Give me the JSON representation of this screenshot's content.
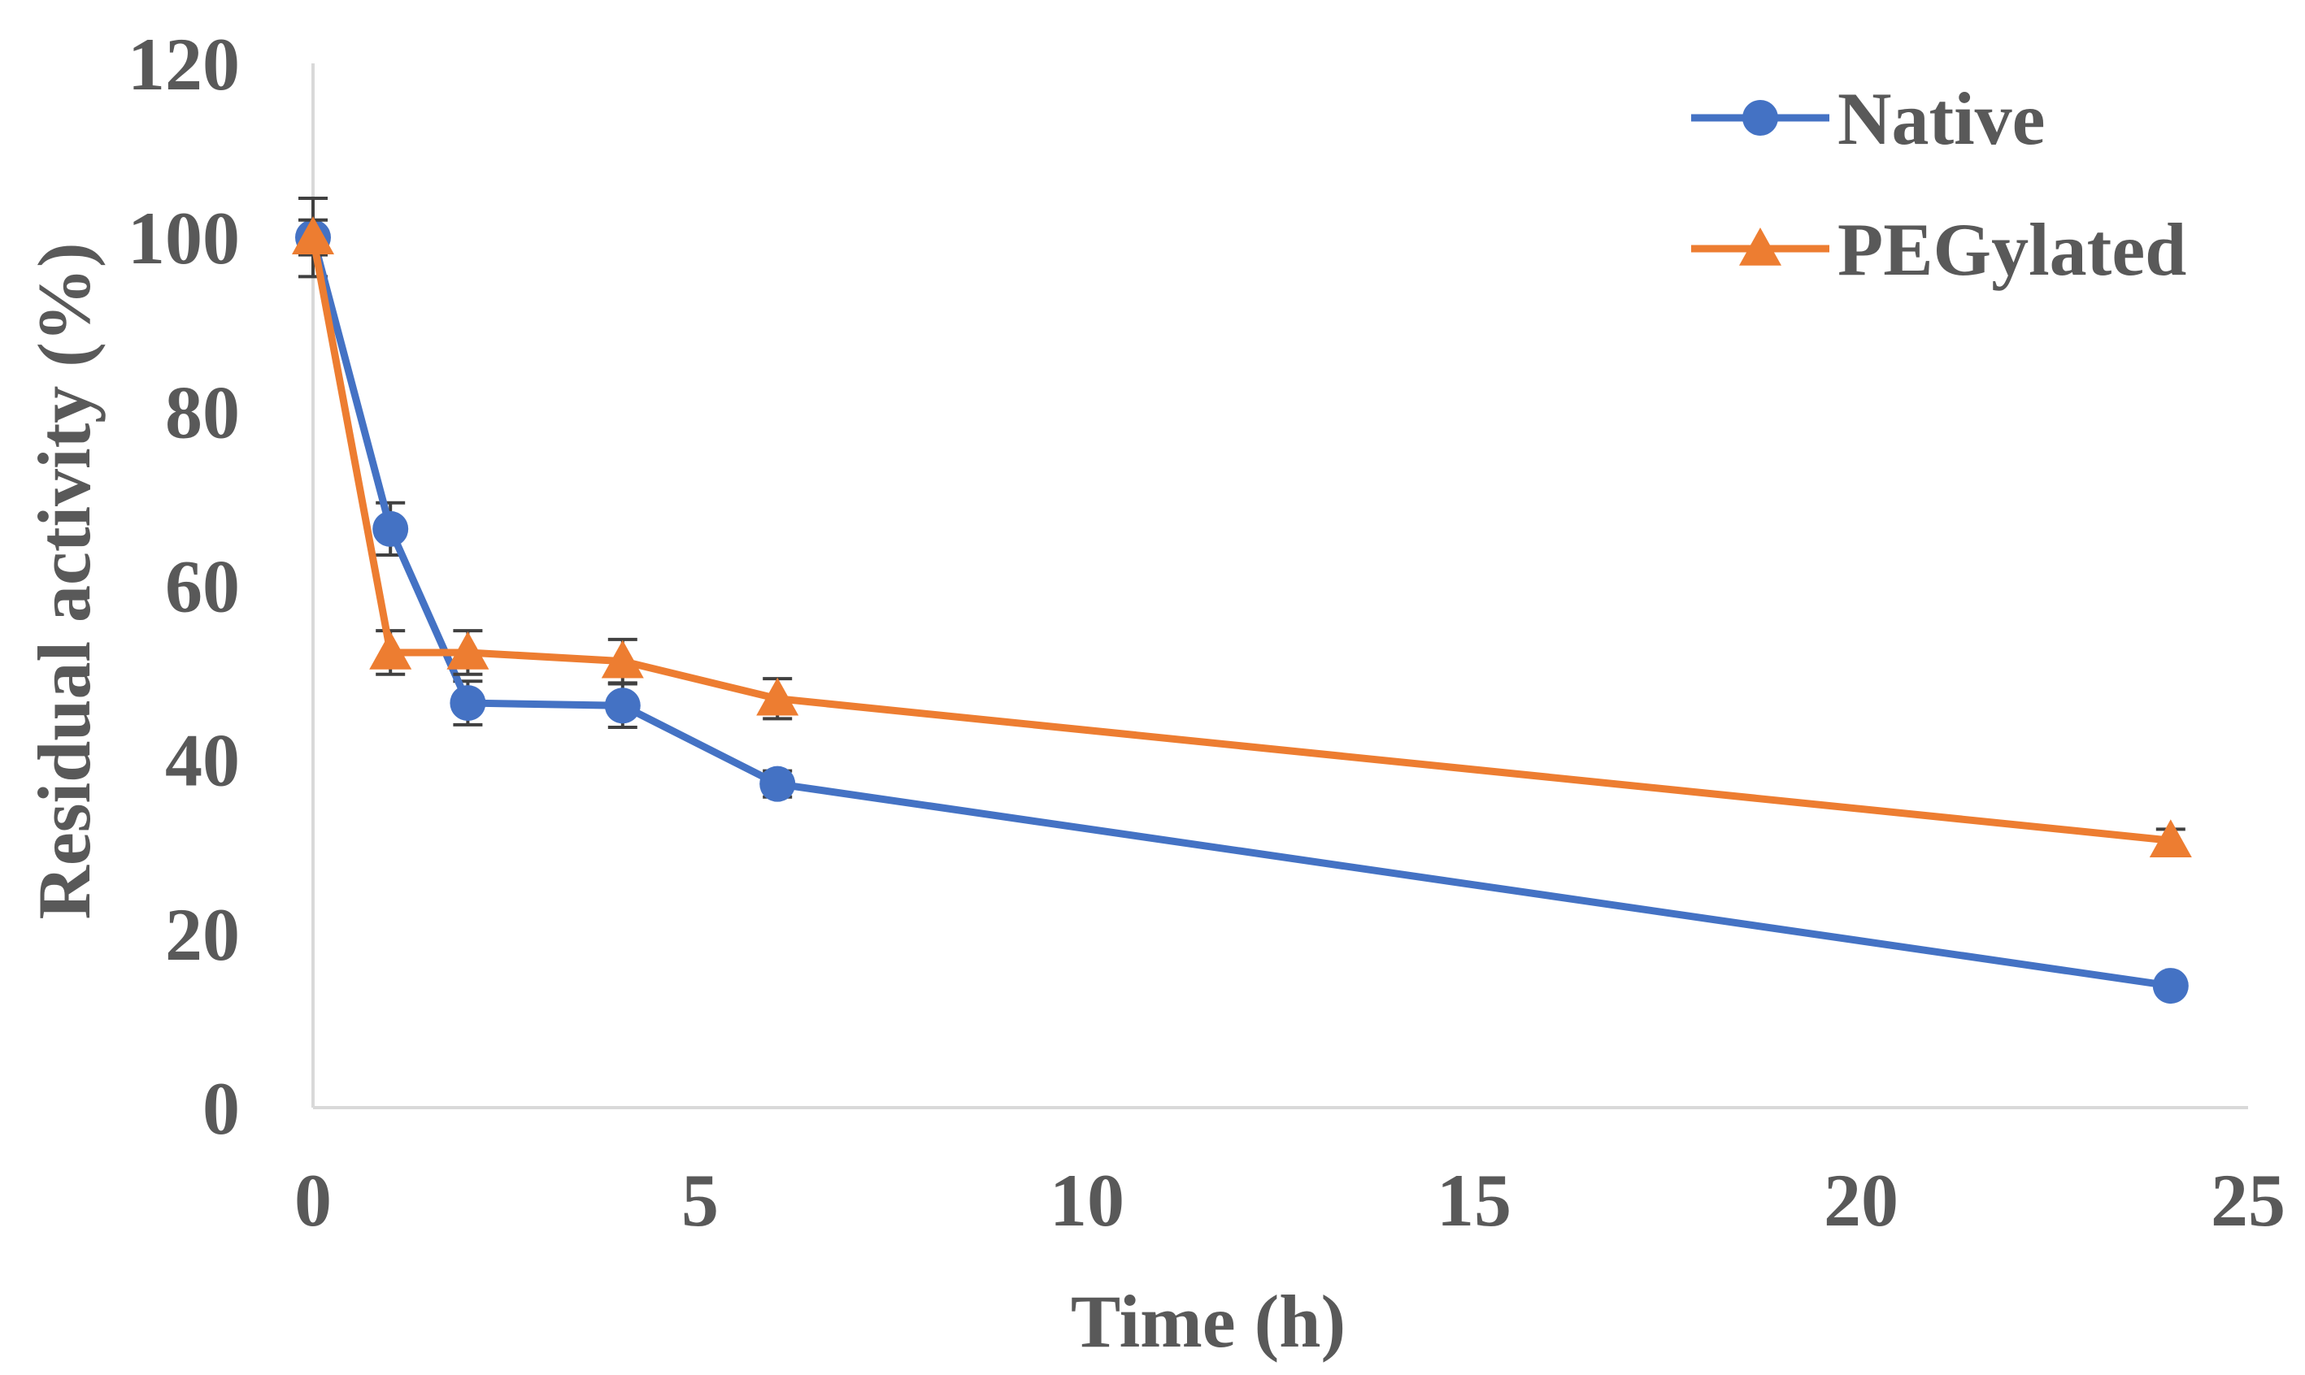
{
  "chart_data": {
    "type": "line",
    "title": "",
    "xlabel": "Time (h)",
    "ylabel": "Residual activity (%)",
    "xlim": [
      0,
      25
    ],
    "ylim": [
      0,
      120
    ],
    "xticks": [
      0,
      5,
      10,
      15,
      20,
      25
    ],
    "yticks": [
      0,
      20,
      40,
      60,
      80,
      100,
      120
    ],
    "x_tick_labels": [
      "0",
      "5",
      "10",
      "15",
      "20",
      "25"
    ],
    "y_tick_labels": [
      "0",
      "20",
      "40",
      "60",
      "80",
      "100",
      "120"
    ],
    "grid": false,
    "legend_position": "top-right",
    "series": [
      {
        "name": "Native",
        "color": "#4472C4",
        "marker": "circle",
        "x": [
          0,
          1,
          2,
          4,
          6,
          24
        ],
        "y": [
          100,
          66.5,
          46.5,
          46.2,
          37.2,
          14.0
        ],
        "error": [
          4.5,
          3.0,
          2.5,
          2.5,
          1.5,
          0
        ]
      },
      {
        "name": "PEGylated",
        "color": "#ED7D31",
        "marker": "triangle",
        "x": [
          0,
          1,
          2,
          4,
          6,
          24
        ],
        "y": [
          100,
          52.3,
          52.3,
          51.3,
          47.0,
          30.7
        ],
        "error": [
          2.0,
          2.5,
          2.5,
          2.5,
          2.3,
          1.3
        ]
      }
    ]
  }
}
